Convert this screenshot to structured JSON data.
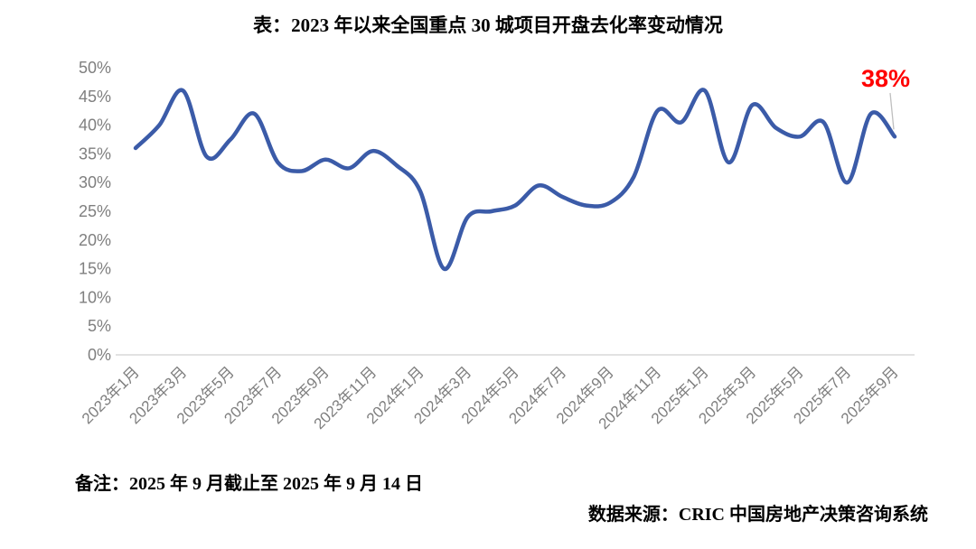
{
  "title": "表：2023 年以来全国重点 30 城项目开盘去化率变动情况",
  "note": "备注：2025 年 9 月截止至 2025 年 9 月 14 日",
  "source": "数据来源：CRIC 中国房地产决策咨询系统",
  "chart_data": {
    "type": "line",
    "title": "表：2023 年以来全国重点 30 城项目开盘去化率变动情况",
    "categories": [
      "2023年1月",
      "2023年2月",
      "2023年3月",
      "2023年4月",
      "2023年5月",
      "2023年6月",
      "2023年7月",
      "2023年8月",
      "2023年9月",
      "2023年10月",
      "2023年11月",
      "2023年12月",
      "2024年1月",
      "2024年2月",
      "2024年3月",
      "2024年4月",
      "2024年5月",
      "2024年6月",
      "2024年7月",
      "2024年8月",
      "2024年9月",
      "2024年10月",
      "2024年11月",
      "2024年12月",
      "2025年1月",
      "2025年2月",
      "2025年3月",
      "2025年4月",
      "2025年5月",
      "2025年6月",
      "2025年7月",
      "2025年8月",
      "2025年9月"
    ],
    "values": [
      36,
      40,
      46,
      34.5,
      37.5,
      42,
      33.5,
      32,
      34,
      32.5,
      35.5,
      33,
      28.5,
      15,
      24,
      25,
      26,
      29.5,
      27.5,
      26,
      26.5,
      31,
      42.5,
      40.5,
      46,
      33.5,
      43.5,
      39.5,
      38,
      40.5,
      30,
      42,
      38
    ],
    "ylim": [
      0,
      50
    ],
    "ytick_step": 5,
    "ytick_labels": [
      "0%",
      "5%",
      "10%",
      "15%",
      "20%",
      "25%",
      "30%",
      "35%",
      "40%",
      "45%",
      "50%"
    ],
    "xtick_every": 2,
    "grid": false,
    "legend": "none",
    "line_color": "#3B5BA8",
    "axis_label_color": "#7F7F7F",
    "axis_line_color": "#D9D9D9",
    "annotation": {
      "text": "38%",
      "color": "#FF0000",
      "connector_color": "#BFBFBF",
      "target_index": 32
    }
  }
}
